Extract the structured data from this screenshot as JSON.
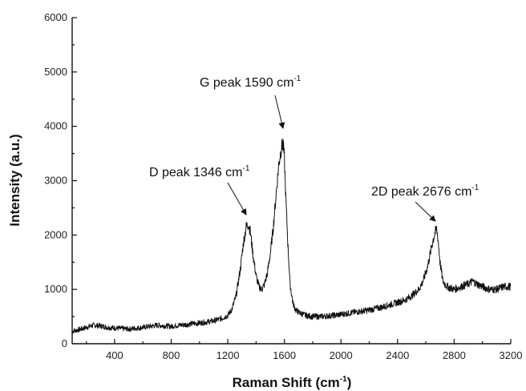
{
  "chart_data": {
    "type": "line",
    "xlabel": "Raman Shift (cm",
    "xlabel_sup": "-1",
    "xlabel_end": ")",
    "ylabel": "Intensity (a.u.)",
    "xlim": [
      100,
      3200
    ],
    "ylim": [
      0,
      6000
    ],
    "x_ticks": [
      400,
      800,
      1200,
      1600,
      2000,
      2400,
      2800,
      3200
    ],
    "y_ticks": [
      0,
      1000,
      2000,
      3000,
      4000,
      5000,
      6000
    ],
    "grid": false,
    "legend": "none",
    "series": [
      {
        "color": "#111111",
        "x": [
          100,
          150,
          200,
          250,
          300,
          350,
          400,
          450,
          500,
          550,
          600,
          650,
          700,
          750,
          800,
          850,
          900,
          950,
          1000,
          1050,
          1100,
          1150,
          1200,
          1230,
          1260,
          1290,
          1310,
          1330,
          1346,
          1360,
          1380,
          1400,
          1420,
          1440,
          1460,
          1480,
          1500,
          1520,
          1540,
          1560,
          1575,
          1590,
          1600,
          1610,
          1625,
          1640,
          1660,
          1680,
          1700,
          1750,
          1800,
          1850,
          1900,
          1950,
          2000,
          2050,
          2100,
          2150,
          2200,
          2250,
          2300,
          2350,
          2400,
          2450,
          2500,
          2550,
          2580,
          2610,
          2630,
          2650,
          2665,
          2676,
          2685,
          2700,
          2720,
          2750,
          2800,
          2850,
          2900,
          2930,
          2960,
          3000,
          3050,
          3100,
          3150,
          3200
        ],
        "y": [
          230,
          260,
          300,
          340,
          330,
          300,
          290,
          280,
          270,
          285,
          300,
          320,
          340,
          330,
          320,
          340,
          350,
          370,
          380,
          400,
          420,
          460,
          520,
          640,
          900,
          1400,
          1850,
          2150,
          2200,
          2050,
          1600,
          1250,
          1050,
          1000,
          1100,
          1300,
          1650,
          2100,
          2700,
          3300,
          3550,
          3700,
          3400,
          2700,
          1800,
          1100,
          750,
          620,
          580,
          520,
          500,
          500,
          510,
          520,
          540,
          560,
          580,
          600,
          620,
          650,
          680,
          720,
          760,
          800,
          880,
          1000,
          1150,
          1400,
          1650,
          1900,
          2050,
          2100,
          1950,
          1500,
          1150,
          1050,
          1000,
          1050,
          1100,
          1150,
          1100,
          1050,
          1000,
          1000,
          1050,
          1050
        ]
      }
    ],
    "annotations": [
      {
        "label": "G peak 1590 cm",
        "sup": "-1",
        "target": [
          1590,
          3720
        ]
      },
      {
        "label": "D peak 1346 cm",
        "sup": "-1",
        "target": [
          1346,
          2270
        ]
      },
      {
        "label": "2D peak 2676 cm",
        "sup": "-1",
        "target": [
          2676,
          2180
        ]
      }
    ]
  }
}
